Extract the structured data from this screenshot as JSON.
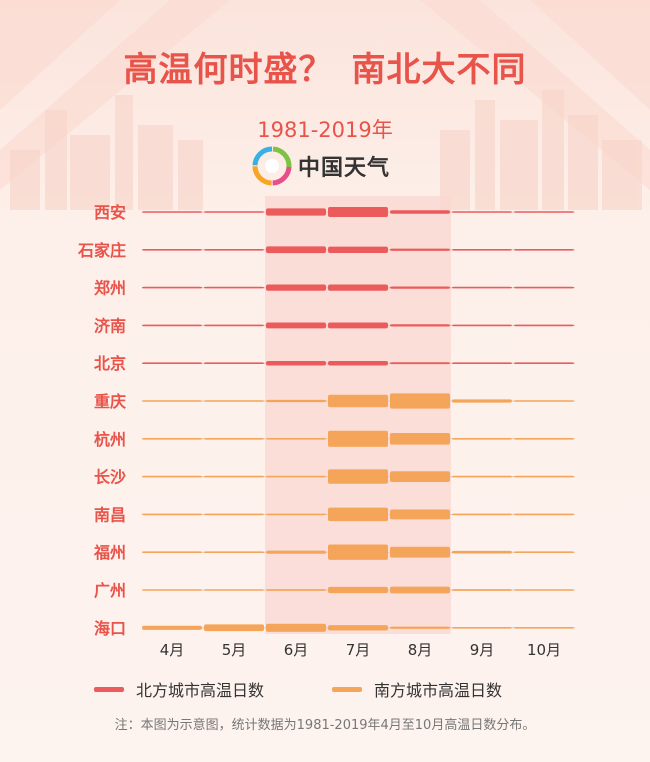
{
  "title": {
    "part1": "高温何时盛？",
    "part2": "南北大不同"
  },
  "subtitle": "1981-2019年",
  "brand": {
    "name": "中国天气",
    "icon": "spiral-logo-icon"
  },
  "colors": {
    "north": "#ec5b5c",
    "south": "#f5a55a",
    "label": "#e8534a",
    "highlight": "#f9d7d2"
  },
  "chart_data": {
    "type": "bar",
    "title": "高温何时盛？南北大不同",
    "subtitle": "1981-2019年",
    "months": [
      "4月",
      "5月",
      "6月",
      "7月",
      "8月",
      "9月",
      "10月"
    ],
    "highlight_months": [
      "6月",
      "7月",
      "8月"
    ],
    "series": [
      {
        "name": "西安",
        "group": "北方城市高温日数",
        "values": [
          0,
          0.3,
          8,
          11,
          4,
          0,
          0
        ]
      },
      {
        "name": "石家庄",
        "group": "北方城市高温日数",
        "values": [
          0,
          0.3,
          7.5,
          7,
          2.5,
          0,
          0
        ]
      },
      {
        "name": "郑州",
        "group": "北方城市高温日数",
        "values": [
          0,
          0.4,
          7,
          7,
          2.5,
          0,
          0
        ]
      },
      {
        "name": "济南",
        "group": "北方城市高温日数",
        "values": [
          0,
          0.3,
          6.5,
          6.5,
          2.5,
          0,
          0
        ]
      },
      {
        "name": "北京",
        "group": "北方城市高温日数",
        "values": [
          0,
          0.3,
          5,
          5,
          2,
          0,
          0
        ]
      },
      {
        "name": "重庆",
        "group": "南方城市高温日数",
        "values": [
          0,
          0.3,
          2.5,
          14,
          17,
          3.5,
          0
        ]
      },
      {
        "name": "杭州",
        "group": "南方城市高温日数",
        "values": [
          0,
          0,
          1.5,
          18,
          13,
          1.5,
          0
        ]
      },
      {
        "name": "长沙",
        "group": "南方城市高温日数",
        "values": [
          0,
          0,
          1.5,
          16,
          12,
          1.5,
          0
        ]
      },
      {
        "name": "南昌",
        "group": "南方城市高温日数",
        "values": [
          0,
          0,
          1.5,
          15,
          11,
          1.5,
          0
        ]
      },
      {
        "name": "福州",
        "group": "南方城市高温日数",
        "values": [
          0,
          0,
          3.5,
          17,
          12,
          3,
          0
        ]
      },
      {
        "name": "广州",
        "group": "南方城市高温日数",
        "values": [
          0,
          0,
          2,
          7,
          7.5,
          2,
          0
        ]
      },
      {
        "name": "海口",
        "group": "南方城市高温日数",
        "values": [
          4.5,
          7.5,
          9,
          6,
          2.5,
          0,
          0
        ]
      }
    ],
    "legend": [
      {
        "label": "北方城市高温日数",
        "color": "#ec5b5c"
      },
      {
        "label": "南方城市高温日数",
        "color": "#f5a55a"
      }
    ],
    "legend_position": "bottom",
    "grid": true
  },
  "note": "注：本图为示意图，统计数据为1981-2019年4月至10月高温日数分布。"
}
